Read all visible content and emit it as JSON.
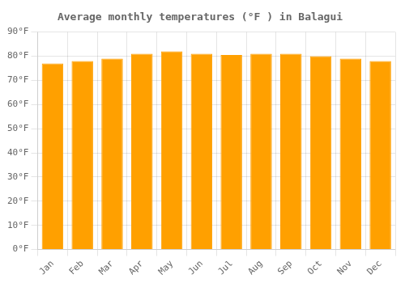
{
  "chart_data": {
    "type": "bar",
    "title": "Average monthly temperatures (°F ) in Balagui",
    "categories": [
      "Jan",
      "Feb",
      "Mar",
      "Apr",
      "May",
      "Jun",
      "Jul",
      "Aug",
      "Sep",
      "Oct",
      "Nov",
      "Dec"
    ],
    "values": [
      77.0,
      78.0,
      79.0,
      81.0,
      82.0,
      81.0,
      80.5,
      81.0,
      81.0,
      80.0,
      79.0,
      78.0
    ],
    "color": "#FFA000",
    "ylim": [
      0,
      90
    ],
    "yticks": [
      {
        "value": 0,
        "label": "0°F"
      },
      {
        "value": 10,
        "label": "10°F"
      },
      {
        "value": 20,
        "label": "20°F"
      },
      {
        "value": 30,
        "label": "30°F"
      },
      {
        "value": 40,
        "label": "40°F"
      },
      {
        "value": 50,
        "label": "50°F"
      },
      {
        "value": 60,
        "label": "60°F"
      },
      {
        "value": 70,
        "label": "70°F"
      },
      {
        "value": 80,
        "label": "80°F"
      },
      {
        "value": 90,
        "label": "90°F"
      }
    ],
    "grid": true
  }
}
